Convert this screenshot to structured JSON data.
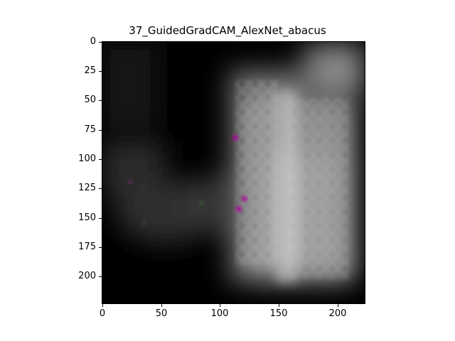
{
  "title": "37_GuidedGradCAM_AlexNet_abacus",
  "image_size": [
    224,
    224
  ],
  "x_ticks": [
    0,
    50,
    100,
    150,
    200
  ],
  "y_ticks": [
    0,
    25,
    50,
    75,
    100,
    125,
    150,
    175,
    200
  ],
  "x_tick_labels": [
    "0",
    "50",
    "100",
    "150",
    "200"
  ],
  "y_tick_labels": [
    "0",
    "25",
    "50",
    "75",
    "100",
    "125",
    "150",
    "175",
    "200"
  ],
  "heatmap_colormap": "gray",
  "accent_colors": {
    "purple_spot": "#b400a0",
    "background": "#000000",
    "highlight": "#c8c8c8"
  }
}
